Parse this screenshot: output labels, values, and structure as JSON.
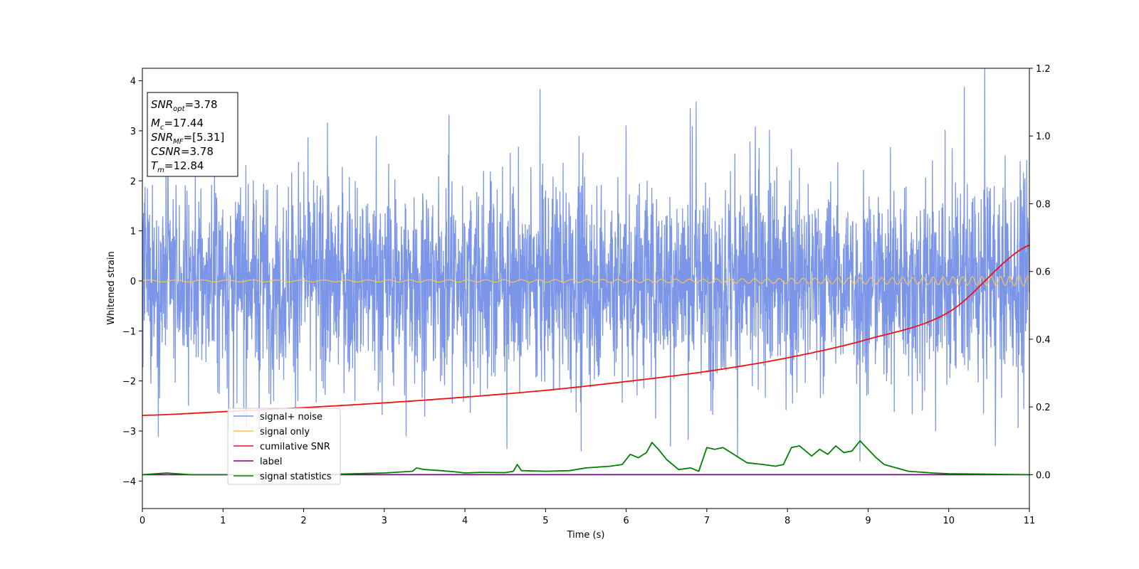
{
  "chart_data": {
    "type": "line",
    "xlabel": "Time (s)",
    "ylabel": "Whitened strain",
    "xlim": [
      0,
      11
    ],
    "ylim": [
      -4.55,
      4.25
    ],
    "y2lim": [
      -0.1,
      1.2
    ],
    "grid": false,
    "legend_placement": "lower-left",
    "x_ticks": [
      0,
      1,
      2,
      3,
      4,
      5,
      6,
      7,
      8,
      9,
      10,
      11
    ],
    "y_ticks": [
      -4,
      -3,
      -2,
      -1,
      0,
      1,
      2,
      3,
      4
    ],
    "y2_ticks": [
      0.0,
      0.2,
      0.4,
      0.6,
      0.8,
      1.0,
      1.2
    ],
    "x_tick_labels": [
      "0",
      "1",
      "2",
      "3",
      "4",
      "5",
      "6",
      "7",
      "8",
      "9",
      "10",
      "11"
    ],
    "y_tick_labels": [
      "−4",
      "−3",
      "−2",
      "−1",
      "0",
      "1",
      "2",
      "3",
      "4"
    ],
    "y2_tick_labels": [
      "0.0",
      "0.2",
      "0.4",
      "0.6",
      "0.8",
      "1.0",
      "1.2"
    ],
    "annotation": {
      "snr_opt": "3.78",
      "mc": "17.44",
      "snr_mf": "[5.31]",
      "csnr": "3.78",
      "tm": "12.84"
    },
    "series": [
      {
        "name": "signal+ noise",
        "color": "#7b96e8",
        "axis": "left",
        "kind": "noise",
        "band": [
          -2.0,
          2.0
        ],
        "peaks": [
          {
            "x": 4.93,
            "y": 3.82
          },
          {
            "x": 4.52,
            "y": -3.35
          },
          {
            "x": 5.44,
            "y": -3.4
          },
          {
            "x": 8.9,
            "y": -3.6
          },
          {
            "x": 6.55,
            "y": -3.3
          },
          {
            "x": 3.27,
            "y": -3.1
          },
          {
            "x": 6.82,
            "y": 3.08
          },
          {
            "x": 7.6,
            "y": 3.08
          },
          {
            "x": 6.0,
            "y": 3.1
          }
        ]
      },
      {
        "name": "signal only",
        "color": "#ffc34d",
        "axis": "left",
        "kind": "chirp",
        "amplitude_start": 0.02,
        "amplitude_end": 0.1,
        "freq_start": 3.0,
        "freq_end": 9.0
      },
      {
        "name": "cumilative SNR",
        "color": "#ee1111",
        "axis": "right",
        "x": [
          0,
          1,
          2,
          3,
          4,
          5,
          6,
          7,
          8,
          9,
          10,
          11
        ],
        "y": [
          0.175,
          0.186,
          0.198,
          0.212,
          0.229,
          0.249,
          0.275,
          0.305,
          0.345,
          0.4,
          0.48,
          0.678
        ]
      },
      {
        "name": "label",
        "color": "#800080",
        "axis": "right",
        "x": [
          0,
          11
        ],
        "y": [
          0.0,
          0.0
        ]
      },
      {
        "name": "signal statistics",
        "color": "#008000",
        "axis": "right",
        "x": [
          0,
          0.3,
          0.6,
          1.0,
          1.5,
          2.0,
          2.5,
          3.0,
          3.2,
          3.35,
          3.4,
          3.5,
          3.7,
          3.9,
          4.0,
          4.2,
          4.5,
          4.6,
          4.65,
          4.7,
          5.0,
          5.3,
          5.5,
          5.8,
          5.95,
          6.05,
          6.15,
          6.25,
          6.32,
          6.4,
          6.5,
          6.65,
          6.8,
          6.9,
          7.0,
          7.1,
          7.2,
          7.3,
          7.5,
          7.7,
          7.85,
          7.95,
          8.05,
          8.15,
          8.3,
          8.4,
          8.5,
          8.6,
          8.7,
          8.8,
          8.9,
          9.0,
          9.1,
          9.2,
          9.5,
          9.8,
          10.0,
          10.3,
          11.0
        ],
        "y": [
          0.0,
          0.005,
          0.0,
          0.0,
          0.0,
          0.0,
          0.002,
          0.005,
          0.008,
          0.01,
          0.02,
          0.015,
          0.012,
          0.008,
          0.005,
          0.007,
          0.006,
          0.01,
          0.03,
          0.012,
          0.01,
          0.012,
          0.02,
          0.025,
          0.03,
          0.06,
          0.05,
          0.065,
          0.095,
          0.075,
          0.045,
          0.015,
          0.02,
          0.01,
          0.08,
          0.075,
          0.08,
          0.065,
          0.035,
          0.03,
          0.025,
          0.03,
          0.08,
          0.085,
          0.055,
          0.075,
          0.06,
          0.085,
          0.065,
          0.07,
          0.1,
          0.075,
          0.05,
          0.03,
          0.01,
          0.005,
          0.003,
          0.002,
          0.0
        ]
      }
    ]
  }
}
